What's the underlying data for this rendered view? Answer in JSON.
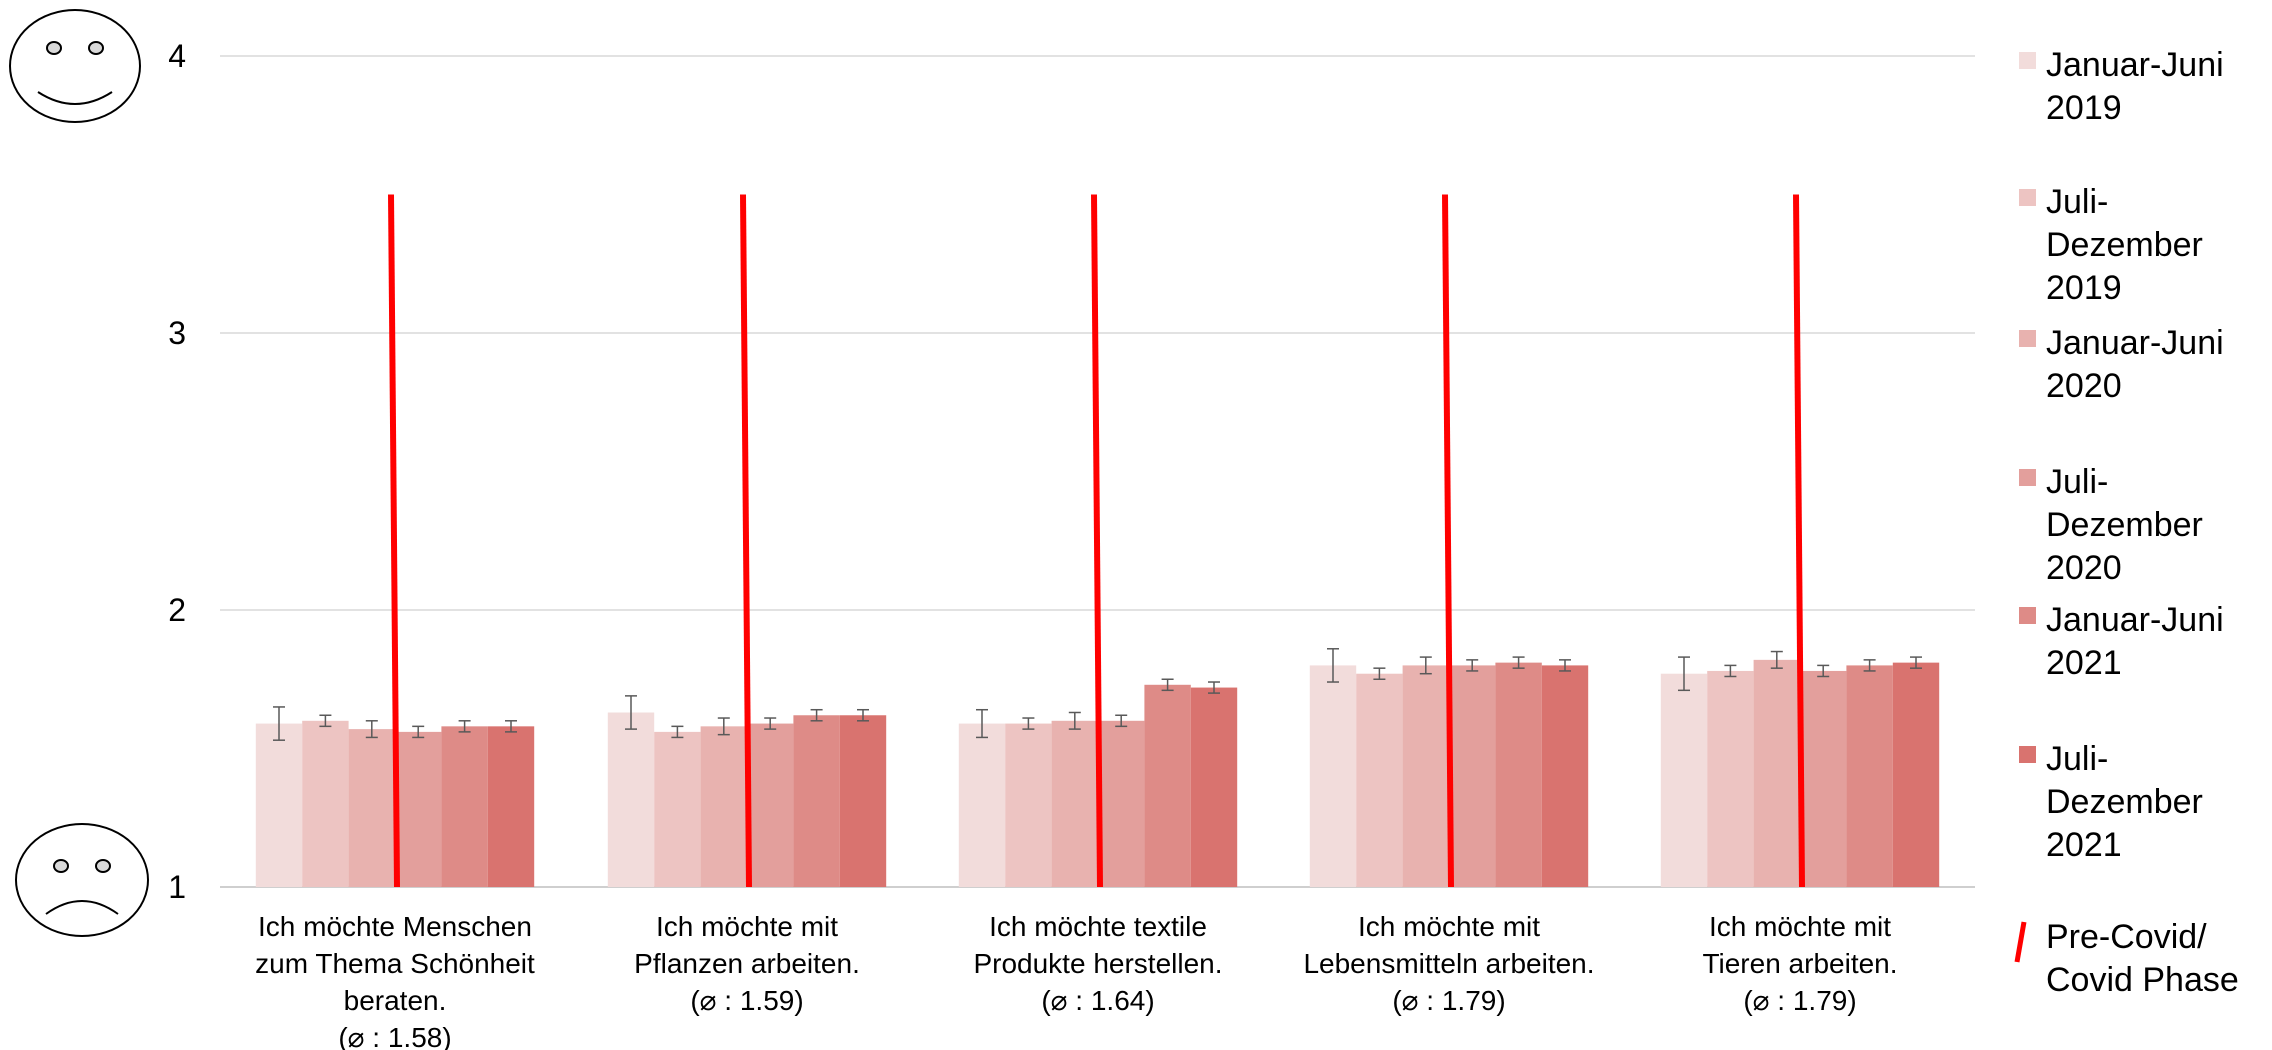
{
  "chart_data": {
    "type": "bar",
    "ylim": [
      1,
      4
    ],
    "yticks": [
      "1",
      "2",
      "3",
      "4"
    ],
    "grid": true,
    "legend_position": "right",
    "categories": [
      {
        "lines": [
          "Ich möchte Menschen",
          "zum Thema Schönheit",
          "beraten.",
          "(⌀ : 1.58)"
        ]
      },
      {
        "lines": [
          "Ich möchte mit",
          "Pflanzen arbeiten.",
          "(⌀ : 1.59)"
        ]
      },
      {
        "lines": [
          "Ich möchte textile",
          "Produkte herstellen.",
          "(⌀ : 1.64)"
        ]
      },
      {
        "lines": [
          "Ich möchte mit",
          "Lebensmitteln arbeiten.",
          "(⌀ : 1.79)"
        ]
      },
      {
        "lines": [
          "Ich möchte mit",
          "Tieren arbeiten.",
          "(⌀ : 1.79)"
        ]
      }
    ],
    "series": [
      {
        "name": "Januar-Juni 2019",
        "legend_lines": [
          "Januar-Juni",
          "2019"
        ],
        "color": "#f2dcdb",
        "values": [
          1.59,
          1.63,
          1.59,
          1.8,
          1.77
        ],
        "errors": [
          0.06,
          0.06,
          0.05,
          0.06,
          0.06
        ]
      },
      {
        "name": "Juli-Dezember 2019",
        "legend_lines": [
          "Juli-",
          "Dezember",
          "2019"
        ],
        "color": "#edc4c2",
        "values": [
          1.6,
          1.56,
          1.59,
          1.77,
          1.78
        ],
        "errors": [
          0.02,
          0.02,
          0.02,
          0.02,
          0.02
        ]
      },
      {
        "name": "Januar-Juni 2020",
        "legend_lines": [
          "Januar-Juni",
          "2020"
        ],
        "color": "#e8b2af",
        "values": [
          1.57,
          1.58,
          1.6,
          1.8,
          1.82
        ],
        "errors": [
          0.03,
          0.03,
          0.03,
          0.03,
          0.03
        ]
      },
      {
        "name": "Juli-Dezember 2020",
        "legend_lines": [
          "Juli-",
          "Dezember",
          "2020"
        ],
        "color": "#e39f9c",
        "values": [
          1.56,
          1.59,
          1.6,
          1.8,
          1.78
        ],
        "errors": [
          0.02,
          0.02,
          0.02,
          0.02,
          0.02
        ]
      },
      {
        "name": "Januar-Juni 2021",
        "legend_lines": [
          "Januar-Juni",
          "2021"
        ],
        "color": "#de8b87",
        "values": [
          1.58,
          1.62,
          1.73,
          1.81,
          1.8
        ],
        "errors": [
          0.02,
          0.02,
          0.02,
          0.02,
          0.02
        ]
      },
      {
        "name": "Juli-Dezember 2021",
        "legend_lines": [
          "Juli-",
          "Dezember",
          "2021"
        ],
        "color": "#d9736f",
        "values": [
          1.58,
          1.62,
          1.72,
          1.8,
          1.81
        ],
        "errors": [
          0.02,
          0.02,
          0.02,
          0.02,
          0.02
        ]
      }
    ],
    "phase_marker": {
      "legend_lines": [
        "Pre-Covid/",
        "Covid Phase"
      ],
      "color": "#ff0000",
      "y_range": [
        1,
        3.5
      ]
    },
    "face_icons": {
      "top": "smiley-face-icon",
      "bottom": "frowning-face-icon"
    }
  }
}
